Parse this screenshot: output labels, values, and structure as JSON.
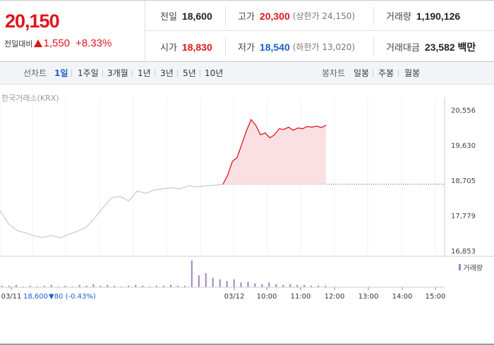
{
  "header": {
    "price": "20,150",
    "change_label": "전일대비",
    "change_value": "1,550",
    "change_pct": "+8.33%",
    "stats": {
      "prev_close": {
        "label": "전일",
        "value": "18,600"
      },
      "high": {
        "label": "고가",
        "value": "20,300",
        "sub": "(상한가 24,150)"
      },
      "volume": {
        "label": "거래량",
        "value": "1,190,126"
      },
      "open": {
        "label": "시가",
        "value": "18,830"
      },
      "low": {
        "label": "저가",
        "value": "18,540",
        "sub": "(하한가 13,020)"
      },
      "amount": {
        "label": "거래대금",
        "value": "23,582 백만"
      }
    },
    "colors": {
      "up": "#e0141b",
      "down": "#1a5fcc"
    }
  },
  "toolbar": {
    "line_label": "선차트",
    "line_periods": [
      "1일",
      "1주일",
      "3개월",
      "1년",
      "3년",
      "5년",
      "10년"
    ],
    "active_period": "1일",
    "candle_label": "봉차트",
    "candle_periods": [
      "일봉",
      "주봉",
      "월봉"
    ]
  },
  "chart": {
    "source": "한국거래소(KRX)",
    "legend": "거래량",
    "prev_date_label": "03/11",
    "prev_close_text": "18,600",
    "prev_change_text": "▼80 (-0.43%)"
  },
  "chart_data": {
    "type": "line",
    "y_ticks": [
      "20,556",
      "19,630",
      "18,705",
      "17,779",
      "16,853"
    ],
    "ylim": [
      16853,
      20556
    ],
    "x_ticks": [
      "03/11",
      "03/12",
      "10:00",
      "11:00",
      "12:00",
      "13:00",
      "14:00",
      "15:00"
    ],
    "reference_line": 18600,
    "series": [
      {
        "values": [
          17900,
          17560,
          17380,
          17320,
          17240,
          17200,
          17250,
          17190,
          17280,
          17360,
          17460,
          17700,
          17980,
          18240,
          18280,
          18160,
          18420,
          18360,
          18450,
          18480,
          18510,
          18480,
          18560,
          18530,
          18560,
          18570,
          18600
        ]
      },
      {
        "values": [
          18600,
          18840,
          19200,
          19300,
          19650,
          20000,
          20300,
          20150,
          19900,
          19950,
          19820,
          19900,
          20060,
          20040,
          20100,
          20020,
          20080,
          20060,
          20120,
          20100,
          20130,
          20090,
          20150
        ]
      }
    ],
    "volume": [
      2,
      2,
      3,
      1,
      2,
      1,
      2,
      3,
      1,
      2,
      1,
      3,
      2,
      4,
      2,
      3,
      2,
      1,
      2,
      3,
      2,
      1,
      2,
      2,
      3,
      2,
      2,
      34,
      15,
      18,
      12,
      10,
      8,
      10,
      6,
      7,
      5,
      4,
      6,
      4,
      3,
      4,
      3,
      3,
      2,
      2,
      2
    ]
  }
}
